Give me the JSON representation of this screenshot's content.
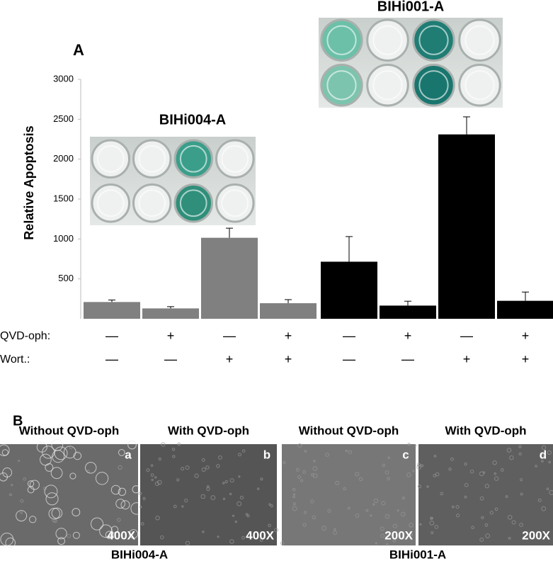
{
  "chart_data": {
    "type": "bar",
    "panel_label": "A",
    "ylabel": "Relative Apoptosis",
    "ylim": [
      0,
      3000
    ],
    "yticks": [
      500,
      1000,
      1500,
      2000,
      2500,
      3000
    ],
    "series": [
      {
        "name": "BIHi004-A",
        "color": "#808080",
        "values": [
          210,
          130,
          1015,
          195
        ],
        "errors": [
          25,
          22,
          120,
          45
        ]
      },
      {
        "name": "BIHi001-A",
        "color": "#000000",
        "values": [
          715,
          165,
          2310,
          225
        ],
        "errors": [
          315,
          55,
          220,
          110
        ]
      }
    ],
    "conditions": [
      {
        "label": "QVD-oph:",
        "signs": [
          "—",
          "+",
          "—",
          "+",
          "—",
          "+",
          "—",
          "+"
        ]
      },
      {
        "label": "Wort.:",
        "signs": [
          "—",
          "—",
          "+",
          "+",
          "—",
          "—",
          "+",
          "+"
        ]
      }
    ]
  },
  "panel_b": {
    "label": "B",
    "images": [
      {
        "caption": "Without QVD-oph",
        "letter": "a",
        "magnification": "400X"
      },
      {
        "caption": "With QVD-oph",
        "letter": "b",
        "magnification": "400X"
      },
      {
        "caption": "Without QVD-oph",
        "letter": "c",
        "magnification": "200X"
      },
      {
        "caption": "With QVD-oph",
        "letter": "d",
        "magnification": "200X"
      }
    ],
    "cell_lines": [
      "BIHi004-A",
      "BIHi001-A"
    ]
  }
}
